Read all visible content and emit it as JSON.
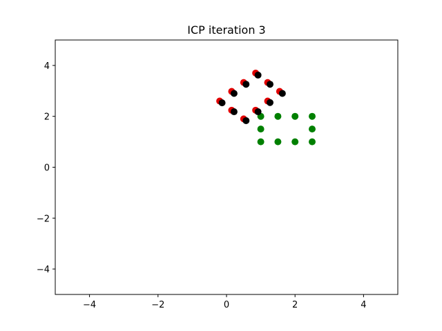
{
  "chart_data": {
    "type": "scatter",
    "title": "ICP iteration 3",
    "xlabel": "",
    "ylabel": "",
    "xlim": [
      -5,
      5
    ],
    "ylim": [
      -5,
      5
    ],
    "x_ticks": [
      -4,
      -2,
      0,
      2,
      4
    ],
    "y_ticks": [
      -4,
      -2,
      0,
      2,
      4
    ],
    "x_tick_labels": [
      "−4",
      "−2",
      "0",
      "2",
      "4"
    ],
    "y_tick_labels": [
      "−4",
      "−2",
      "0",
      "2",
      "4"
    ],
    "grid": false,
    "legend": "none",
    "series": [
      {
        "color": "#008000",
        "points": [
          [
            1.0,
            2.0
          ],
          [
            1.5,
            2.0
          ],
          [
            2.0,
            2.0
          ],
          [
            2.5,
            2.0
          ],
          [
            1.0,
            1.5
          ],
          [
            2.5,
            1.5
          ],
          [
            1.0,
            1.0
          ],
          [
            1.5,
            1.0
          ],
          [
            2.0,
            1.0
          ],
          [
            2.5,
            1.0
          ]
        ]
      },
      {
        "color": "#e00000",
        "points": [
          [
            -0.2,
            2.6
          ],
          [
            0.15,
            2.98
          ],
          [
            0.5,
            3.33
          ],
          [
            0.85,
            3.7
          ],
          [
            1.2,
            3.33
          ],
          [
            1.55,
            2.98
          ],
          [
            1.2,
            2.6
          ],
          [
            0.15,
            2.24
          ],
          [
            0.5,
            1.9
          ],
          [
            0.85,
            2.24
          ]
        ]
      },
      {
        "color": "#000000",
        "points": [
          [
            -0.13,
            2.53
          ],
          [
            0.22,
            2.9
          ],
          [
            0.57,
            3.26
          ],
          [
            0.92,
            3.62
          ],
          [
            1.27,
            3.26
          ],
          [
            1.63,
            2.9
          ],
          [
            1.27,
            2.54
          ],
          [
            0.22,
            2.18
          ],
          [
            0.57,
            1.83
          ],
          [
            0.92,
            2.18
          ]
        ]
      }
    ]
  }
}
